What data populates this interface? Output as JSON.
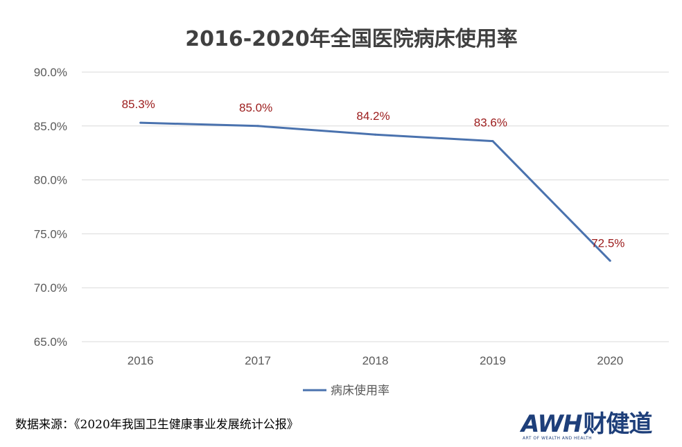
{
  "chart_data": {
    "type": "line",
    "title": "2016-2020年全国医院病床使用率",
    "categories": [
      "2016",
      "2017",
      "2018",
      "2019",
      "2020"
    ],
    "series": [
      {
        "name": "病床使用率",
        "values": [
          85.3,
          85.0,
          84.2,
          83.6,
          72.5
        ],
        "color": "#4a72ae"
      }
    ],
    "data_labels": [
      "85.3%",
      "85.0%",
      "84.2%",
      "83.6%",
      "72.5%"
    ],
    "yticks": [
      65.0,
      70.0,
      75.0,
      80.0,
      85.0,
      90.0
    ],
    "ytick_labels": [
      "65.0%",
      "70.0%",
      "75.0%",
      "80.0%",
      "85.0%",
      "90.0%"
    ],
    "ylim": [
      65,
      90
    ],
    "xlabel": "",
    "ylabel": "",
    "grid": true,
    "legend_position": "bottom-center",
    "label_color": "#9b1b1b"
  },
  "source": {
    "label": "数据来源：",
    "text": "《2020年我国卫生健康事业发展统计公报》"
  },
  "logo": {
    "latin": "AWH",
    "chinese": "财健道",
    "tagline": "ART OF WEALTH AND HEALTH"
  }
}
